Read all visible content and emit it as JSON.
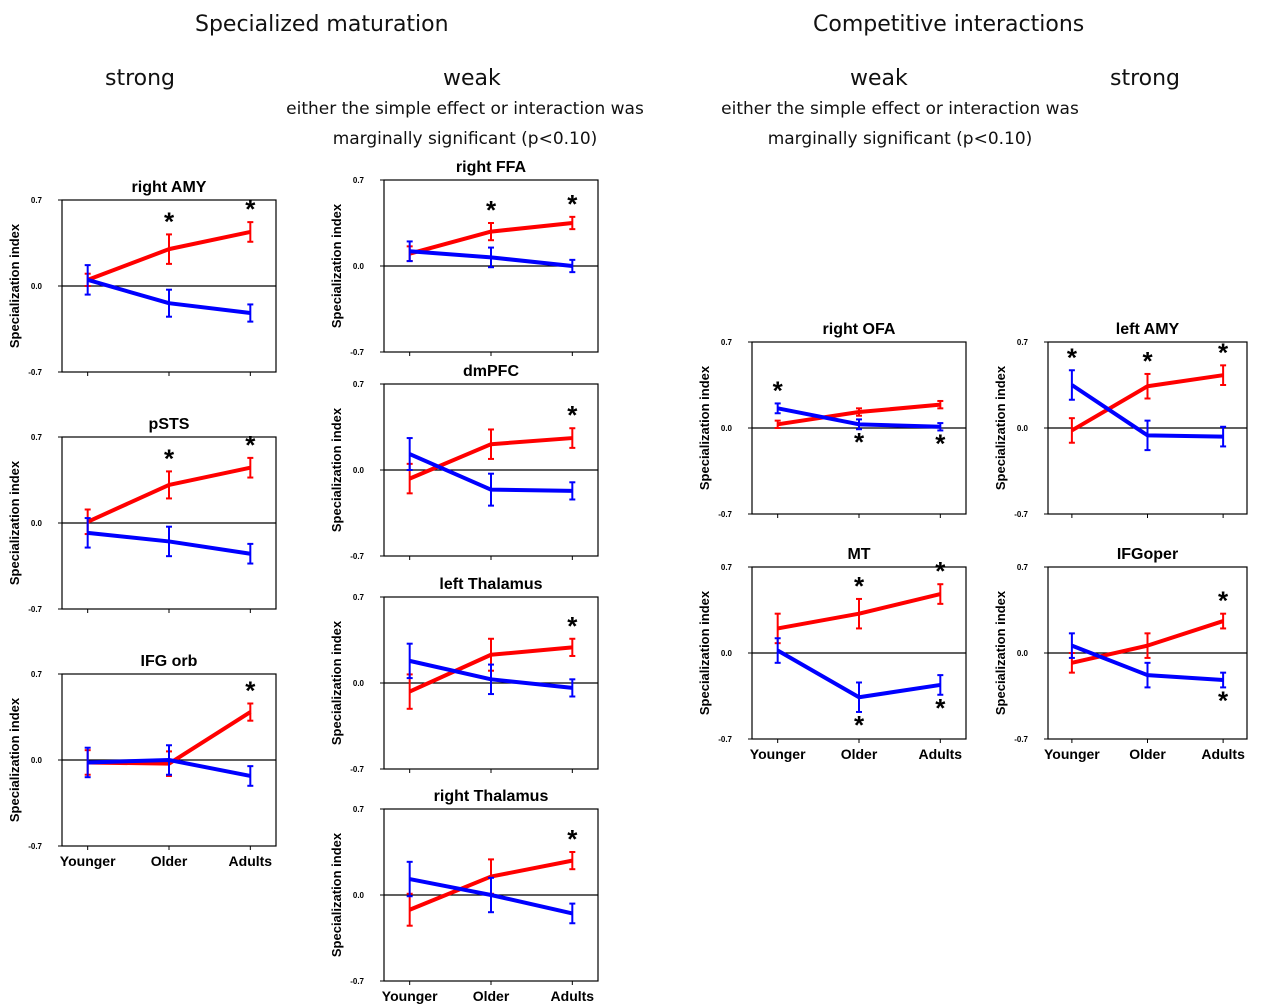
{
  "headings": {
    "left_title": "Specialized maturation",
    "right_title": "Competitive interactions",
    "col_strong_left": "strong",
    "col_weak_left": "weak",
    "col_weak_right": "weak",
    "col_strong_right": "strong",
    "note_left": "either the simple effect or interaction was marginally significant (p<0.10)",
    "note_right": "either the simple effect or interaction was marginally significant (p<0.10)"
  },
  "axis": {
    "ylabel": "Specialization index",
    "yticks": [
      "0.7",
      "0.0",
      "-0.7"
    ],
    "ylim": [
      -0.7,
      0.7
    ],
    "groups": [
      "Younger",
      "Older",
      "Adults"
    ]
  },
  "colors": {
    "series_a": "#ff0000",
    "series_b": "#0000ff",
    "axis": "#000000"
  },
  "chart_data": [
    {
      "type": "line",
      "title": "right AMY",
      "series": [
        {
          "color": "red",
          "values": [
            0.05,
            0.3,
            0.44
          ],
          "errors": [
            0.05,
            0.12,
            0.08
          ],
          "star": [
            false,
            true,
            true
          ]
        },
        {
          "color": "blue",
          "values": [
            0.05,
            -0.14,
            -0.22
          ],
          "errors": [
            0.12,
            0.11,
            0.07
          ],
          "star": [
            false,
            false,
            false
          ]
        }
      ]
    },
    {
      "type": "line",
      "title": "pSTS",
      "series": [
        {
          "color": "red",
          "values": [
            0.01,
            0.31,
            0.45
          ],
          "errors": [
            0.1,
            0.11,
            0.08
          ],
          "star": [
            false,
            true,
            true
          ]
        },
        {
          "color": "blue",
          "values": [
            -0.08,
            -0.15,
            -0.25
          ],
          "errors": [
            0.12,
            0.12,
            0.08
          ],
          "star": [
            false,
            false,
            false
          ]
        }
      ]
    },
    {
      "type": "line",
      "title": "IFG orb",
      "series": [
        {
          "color": "red",
          "values": [
            -0.02,
            -0.03,
            0.39
          ],
          "errors": [
            0.1,
            0.1,
            0.07
          ],
          "star": [
            false,
            false,
            true
          ]
        },
        {
          "color": "blue",
          "values": [
            -0.02,
            0.0,
            -0.13
          ],
          "errors": [
            0.12,
            0.12,
            0.08
          ],
          "star": [
            false,
            false,
            false
          ]
        }
      ]
    },
    {
      "type": "line",
      "title": "right FFA",
      "series": [
        {
          "color": "red",
          "values": [
            0.1,
            0.28,
            0.35
          ],
          "errors": [
            0.06,
            0.07,
            0.05
          ],
          "star": [
            false,
            true,
            true
          ]
        },
        {
          "color": "blue",
          "values": [
            0.12,
            0.07,
            0.0
          ],
          "errors": [
            0.08,
            0.08,
            0.05
          ],
          "star": [
            false,
            false,
            false
          ]
        }
      ]
    },
    {
      "type": "line",
      "title": "dmPFC",
      "series": [
        {
          "color": "red",
          "values": [
            -0.07,
            0.21,
            0.26
          ],
          "errors": [
            0.12,
            0.12,
            0.08
          ],
          "star": [
            false,
            false,
            true
          ]
        },
        {
          "color": "blue",
          "values": [
            0.13,
            -0.16,
            -0.17
          ],
          "errors": [
            0.13,
            0.13,
            0.07
          ],
          "star": [
            false,
            false,
            false
          ]
        }
      ]
    },
    {
      "type": "line",
      "title": "left Thalamus",
      "series": [
        {
          "color": "red",
          "values": [
            -0.07,
            0.23,
            0.29
          ],
          "errors": [
            0.14,
            0.13,
            0.07
          ],
          "star": [
            false,
            false,
            true
          ]
        },
        {
          "color": "blue",
          "values": [
            0.18,
            0.03,
            -0.04
          ],
          "errors": [
            0.14,
            0.12,
            0.07
          ],
          "star": [
            false,
            false,
            false
          ]
        }
      ]
    },
    {
      "type": "line",
      "title": "right Thalamus",
      "series": [
        {
          "color": "red",
          "values": [
            -0.12,
            0.15,
            0.28
          ],
          "errors": [
            0.13,
            0.14,
            0.07
          ],
          "star": [
            false,
            false,
            true
          ]
        },
        {
          "color": "blue",
          "values": [
            0.13,
            0.0,
            -0.15
          ],
          "errors": [
            0.14,
            0.14,
            0.08
          ],
          "star": [
            false,
            false,
            false
          ]
        }
      ]
    },
    {
      "type": "line",
      "title": "right OFA",
      "series": [
        {
          "color": "red",
          "values": [
            0.03,
            0.13,
            0.19
          ],
          "errors": [
            0.03,
            0.03,
            0.03
          ],
          "star": [
            false,
            false,
            false
          ]
        },
        {
          "color": "blue",
          "values": [
            0.16,
            0.03,
            0.01
          ],
          "errors": [
            0.04,
            0.04,
            0.03
          ],
          "star": [
            true,
            true,
            true
          ]
        }
      ]
    },
    {
      "type": "line",
      "title": "left AMY",
      "series": [
        {
          "color": "red",
          "values": [
            -0.02,
            0.34,
            0.43
          ],
          "errors": [
            0.1,
            0.1,
            0.08
          ],
          "star": [
            false,
            true,
            true
          ]
        },
        {
          "color": "blue",
          "values": [
            0.35,
            -0.06,
            -0.07
          ],
          "errors": [
            0.12,
            0.12,
            0.08
          ],
          "star": [
            true,
            false,
            false
          ]
        }
      ]
    },
    {
      "type": "line",
      "title": "MT",
      "series": [
        {
          "color": "red",
          "values": [
            0.2,
            0.32,
            0.48
          ],
          "errors": [
            0.12,
            0.12,
            0.08
          ],
          "star": [
            false,
            true,
            true
          ]
        },
        {
          "color": "blue",
          "values": [
            0.02,
            -0.36,
            -0.26
          ],
          "errors": [
            0.1,
            0.12,
            0.08
          ],
          "star": [
            false,
            true,
            true
          ]
        }
      ]
    },
    {
      "type": "line",
      "title": "IFGoper",
      "series": [
        {
          "color": "red",
          "values": [
            -0.08,
            0.06,
            0.26
          ],
          "errors": [
            0.08,
            0.1,
            0.06
          ],
          "star": [
            false,
            false,
            true
          ]
        },
        {
          "color": "blue",
          "values": [
            0.06,
            -0.18,
            -0.22
          ],
          "errors": [
            0.1,
            0.1,
            0.06
          ],
          "star": [
            false,
            false,
            true
          ]
        }
      ]
    }
  ]
}
